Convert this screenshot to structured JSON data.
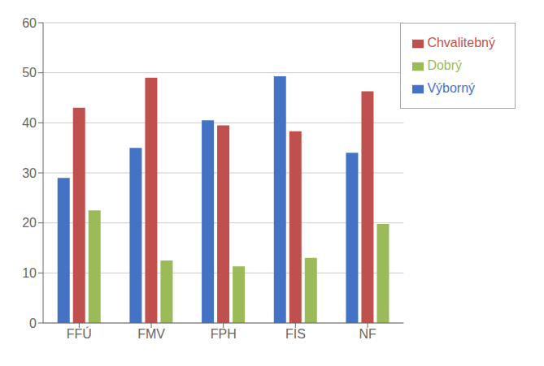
{
  "chart_data": {
    "type": "bar",
    "categories": [
      "FFÚ",
      "FMV",
      "FPH",
      "FIS",
      "NF"
    ],
    "series": [
      {
        "name": "Výborný",
        "values": [
          29,
          35,
          40.5,
          49.3,
          34
        ],
        "color": "#4472C4"
      },
      {
        "name": "Chvalitebný",
        "values": [
          43,
          49,
          39.5,
          38.3,
          46.3
        ],
        "color": "#C0504D"
      },
      {
        "name": "Dobrý",
        "values": [
          22.5,
          12.5,
          11.3,
          13,
          19.8
        ],
        "color": "#9BBB59"
      }
    ],
    "ylim": [
      0,
      60
    ],
    "yticks": [
      0,
      10,
      20,
      30,
      40,
      50,
      60
    ],
    "grid": true,
    "legend": "right"
  }
}
